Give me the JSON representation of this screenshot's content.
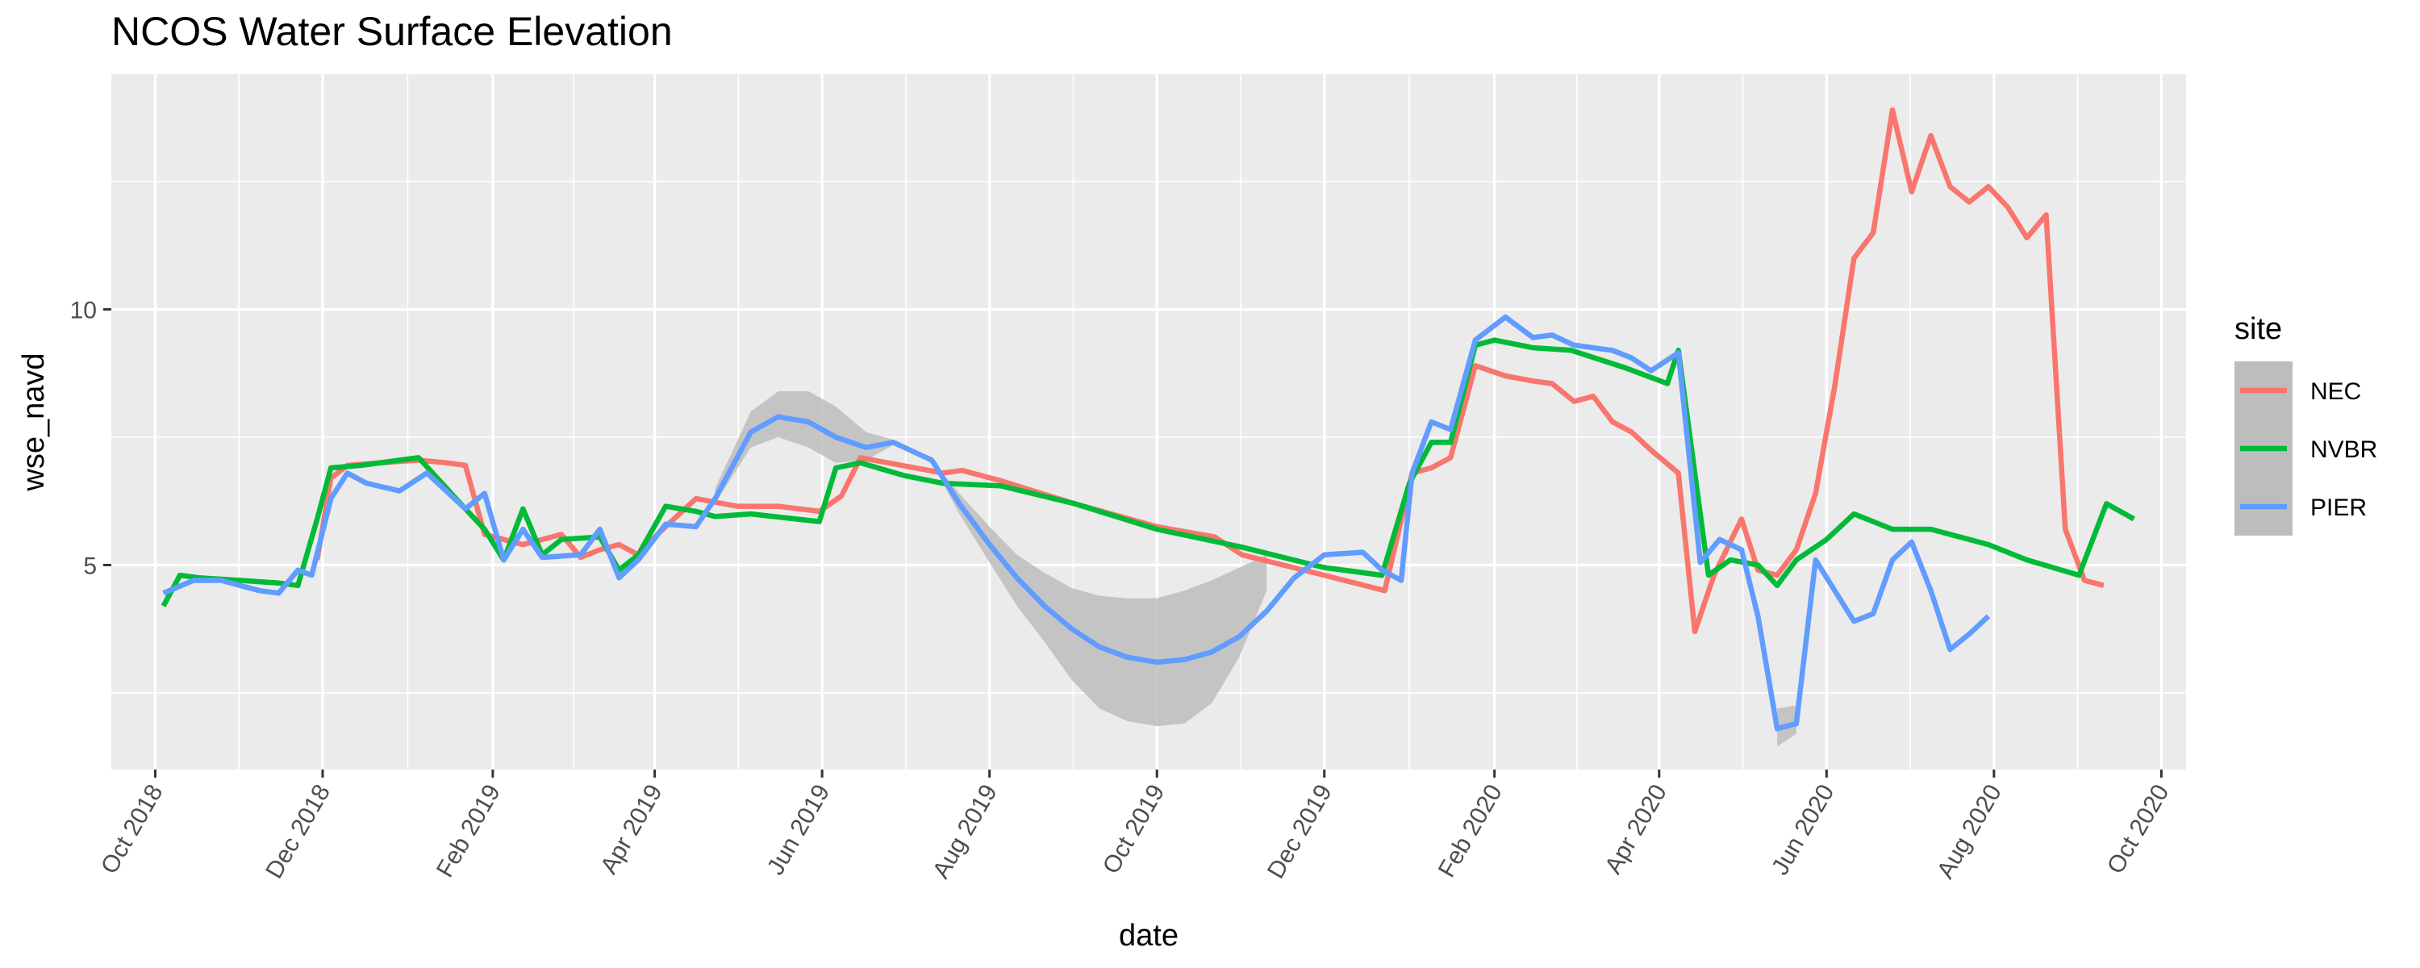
{
  "chart_data": {
    "type": "line",
    "title": "NCOS Water Surface Elevation",
    "xlabel": "date",
    "ylabel": "wse_navd",
    "x_ticks": [
      "Oct 2018",
      "Dec 2018",
      "Feb 2019",
      "Apr 2019",
      "Jun 2019",
      "Aug 2019",
      "Oct 2019",
      "Dec 2019",
      "Feb 2020",
      "Apr 2020",
      "Jun 2020",
      "Aug 2020",
      "Oct 2020"
    ],
    "y_ticks": [
      5,
      10
    ],
    "xlim": [
      "2018-09-15",
      "2020-10-10"
    ],
    "ylim": [
      1.0,
      14.6
    ],
    "grid": true,
    "legend": {
      "title": "site",
      "position": "right"
    },
    "colors": {
      "NEC": "#F8766D",
      "NVBR": "#00BA38",
      "PIER": "#619CFF",
      "band": "#bdbdbd",
      "panel": "#ebebeb"
    },
    "series": [
      {
        "name": "NEC",
        "points": [
          [
            "2018-11-29",
            5.1
          ],
          [
            "2018-12-04",
            6.7
          ],
          [
            "2018-12-10",
            6.95
          ],
          [
            "2018-12-22",
            7.0
          ],
          [
            "2019-01-05",
            7.05
          ],
          [
            "2019-01-15",
            7.0
          ],
          [
            "2019-01-22",
            6.95
          ],
          [
            "2019-01-29",
            5.6
          ],
          [
            "2019-02-05",
            5.5
          ],
          [
            "2019-02-12",
            5.4
          ],
          [
            "2019-02-19",
            5.5
          ],
          [
            "2019-02-26",
            5.6
          ],
          [
            "2019-03-05",
            5.15
          ],
          [
            "2019-03-12",
            5.3
          ],
          [
            "2019-03-19",
            5.4
          ],
          [
            "2019-03-26",
            5.2
          ],
          [
            "2019-04-02",
            5.6
          ],
          [
            "2019-04-16",
            6.3
          ],
          [
            "2019-05-01",
            6.15
          ],
          [
            "2019-05-16",
            6.15
          ],
          [
            "2019-05-31",
            6.05
          ],
          [
            "2019-06-08",
            6.35
          ],
          [
            "2019-06-15",
            7.1
          ],
          [
            "2019-06-30",
            6.95
          ],
          [
            "2019-07-15",
            6.8
          ],
          [
            "2019-07-22",
            6.85
          ],
          [
            "2019-08-05",
            6.65
          ],
          [
            "2019-09-01",
            6.2
          ],
          [
            "2019-10-01",
            5.75
          ],
          [
            "2019-10-22",
            5.55
          ],
          [
            "2019-11-01",
            5.2
          ],
          [
            "2019-12-01",
            4.8
          ],
          [
            "2019-12-23",
            4.5
          ],
          [
            "2020-01-02",
            6.8
          ],
          [
            "2020-01-09",
            6.9
          ],
          [
            "2020-01-16",
            7.1
          ],
          [
            "2020-01-25",
            8.9
          ],
          [
            "2020-02-05",
            8.7
          ],
          [
            "2020-02-15",
            8.6
          ],
          [
            "2020-02-22",
            8.55
          ],
          [
            "2020-03-01",
            8.2
          ],
          [
            "2020-03-08",
            8.3
          ],
          [
            "2020-03-15",
            7.8
          ],
          [
            "2020-03-22",
            7.6
          ],
          [
            "2020-03-29",
            7.25
          ],
          [
            "2020-04-08",
            6.8
          ],
          [
            "2020-04-14",
            3.7
          ],
          [
            "2020-04-21",
            4.8
          ],
          [
            "2020-05-01",
            5.9
          ],
          [
            "2020-05-07",
            4.9
          ],
          [
            "2020-05-14",
            4.8
          ],
          [
            "2020-05-21",
            5.3
          ],
          [
            "2020-05-28",
            6.4
          ],
          [
            "2020-06-04",
            8.5
          ],
          [
            "2020-06-11",
            11.0
          ],
          [
            "2020-06-18",
            11.5
          ],
          [
            "2020-06-25",
            13.9
          ],
          [
            "2020-07-02",
            12.3
          ],
          [
            "2020-07-09",
            13.4
          ],
          [
            "2020-07-16",
            12.4
          ],
          [
            "2020-07-23",
            12.1
          ],
          [
            "2020-07-30",
            12.4
          ],
          [
            "2020-08-06",
            12.0
          ],
          [
            "2020-08-13",
            11.4
          ],
          [
            "2020-08-20",
            11.85
          ],
          [
            "2020-08-27",
            5.7
          ],
          [
            "2020-09-03",
            4.7
          ],
          [
            "2020-09-10",
            4.6
          ]
        ]
      },
      {
        "name": "NVBR",
        "points": [
          [
            "2018-10-04",
            4.2
          ],
          [
            "2018-10-10",
            4.8
          ],
          [
            "2018-10-17",
            4.75
          ],
          [
            "2018-11-01",
            4.7
          ],
          [
            "2018-11-15",
            4.65
          ],
          [
            "2018-11-22",
            4.6
          ],
          [
            "2018-11-29",
            5.9
          ],
          [
            "2018-12-04",
            6.9
          ],
          [
            "2018-12-15",
            6.95
          ],
          [
            "2018-12-29",
            7.05
          ],
          [
            "2019-01-05",
            7.1
          ],
          [
            "2019-01-22",
            6.1
          ],
          [
            "2019-01-29",
            5.7
          ],
          [
            "2019-02-05",
            5.1
          ],
          [
            "2019-02-12",
            6.1
          ],
          [
            "2019-02-19",
            5.2
          ],
          [
            "2019-02-26",
            5.5
          ],
          [
            "2019-03-12",
            5.55
          ],
          [
            "2019-03-19",
            4.9
          ],
          [
            "2019-03-26",
            5.2
          ],
          [
            "2019-04-05",
            6.15
          ],
          [
            "2019-04-16",
            6.05
          ],
          [
            "2019-04-23",
            5.95
          ],
          [
            "2019-05-06",
            6.0
          ],
          [
            "2019-05-31",
            5.85
          ],
          [
            "2019-06-06",
            6.9
          ],
          [
            "2019-06-15",
            7.0
          ],
          [
            "2019-07-01",
            6.75
          ],
          [
            "2019-07-15",
            6.6
          ],
          [
            "2019-08-05",
            6.55
          ],
          [
            "2019-09-01",
            6.2
          ],
          [
            "2019-10-01",
            5.7
          ],
          [
            "2019-11-01",
            5.35
          ],
          [
            "2019-12-01",
            4.95
          ],
          [
            "2019-12-22",
            4.8
          ],
          [
            "2020-01-01",
            6.6
          ],
          [
            "2020-01-09",
            7.4
          ],
          [
            "2020-01-16",
            7.4
          ],
          [
            "2020-01-25",
            9.3
          ],
          [
            "2020-02-01",
            9.4
          ],
          [
            "2020-02-15",
            9.25
          ],
          [
            "2020-02-29",
            9.2
          ],
          [
            "2020-03-20",
            8.85
          ],
          [
            "2020-04-04",
            8.55
          ],
          [
            "2020-04-08",
            9.2
          ],
          [
            "2020-04-19",
            4.8
          ],
          [
            "2020-04-27",
            5.1
          ],
          [
            "2020-05-07",
            5.0
          ],
          [
            "2020-05-14",
            4.6
          ],
          [
            "2020-05-21",
            5.1
          ],
          [
            "2020-06-01",
            5.5
          ],
          [
            "2020-06-11",
            6.0
          ],
          [
            "2020-06-25",
            5.7
          ],
          [
            "2020-07-09",
            5.7
          ],
          [
            "2020-07-30",
            5.4
          ],
          [
            "2020-08-13",
            5.1
          ],
          [
            "2020-09-01",
            4.8
          ],
          [
            "2020-09-11",
            6.2
          ],
          [
            "2020-09-21",
            5.9
          ]
        ]
      },
      {
        "name": "PIER",
        "points": [
          [
            "2018-10-04",
            4.45
          ],
          [
            "2018-10-15",
            4.7
          ],
          [
            "2018-10-25",
            4.7
          ],
          [
            "2018-11-08",
            4.5
          ],
          [
            "2018-11-15",
            4.45
          ],
          [
            "2018-11-22",
            4.9
          ],
          [
            "2018-11-27",
            4.8
          ],
          [
            "2018-12-04",
            6.3
          ],
          [
            "2018-12-10",
            6.8
          ],
          [
            "2018-12-17",
            6.6
          ],
          [
            "2018-12-29",
            6.45
          ],
          [
            "2019-01-08",
            6.8
          ],
          [
            "2019-01-22",
            6.1
          ],
          [
            "2019-01-29",
            6.4
          ],
          [
            "2019-02-05",
            5.1
          ],
          [
            "2019-02-12",
            5.7
          ],
          [
            "2019-02-19",
            5.15
          ],
          [
            "2019-03-05",
            5.2
          ],
          [
            "2019-03-12",
            5.7
          ],
          [
            "2019-03-19",
            4.75
          ],
          [
            "2019-03-26",
            5.1
          ],
          [
            "2019-04-05",
            5.8
          ],
          [
            "2019-04-16",
            5.75
          ],
          [
            "2019-04-23",
            6.3
          ],
          [
            "2019-05-06",
            7.6
          ],
          [
            "2019-05-16",
            7.9
          ],
          [
            "2019-05-27",
            7.8
          ],
          [
            "2019-06-06",
            7.5
          ],
          [
            "2019-06-17",
            7.3
          ],
          [
            "2019-06-27",
            7.4
          ],
          [
            "2019-07-11",
            7.05
          ],
          [
            "2019-07-21",
            6.2
          ],
          [
            "2019-08-01",
            5.4
          ],
          [
            "2019-08-11",
            4.75
          ],
          [
            "2019-08-21",
            4.2
          ],
          [
            "2019-08-31",
            3.75
          ],
          [
            "2019-09-10",
            3.4
          ],
          [
            "2019-09-20",
            3.2
          ],
          [
            "2019-10-01",
            3.1
          ],
          [
            "2019-10-11",
            3.15
          ],
          [
            "2019-10-21",
            3.3
          ],
          [
            "2019-10-31",
            3.6
          ],
          [
            "2019-11-10",
            4.1
          ],
          [
            "2019-11-20",
            4.75
          ],
          [
            "2019-12-01",
            5.2
          ],
          [
            "2019-12-15",
            5.25
          ],
          [
            "2019-12-22",
            4.9
          ],
          [
            "2019-12-29",
            4.7
          ],
          [
            "2020-01-02",
            6.8
          ],
          [
            "2020-01-09",
            7.8
          ],
          [
            "2020-01-16",
            7.65
          ],
          [
            "2020-01-25",
            9.4
          ],
          [
            "2020-02-05",
            9.85
          ],
          [
            "2020-02-15",
            9.45
          ],
          [
            "2020-02-22",
            9.5
          ],
          [
            "2020-03-01",
            9.3
          ],
          [
            "2020-03-15",
            9.2
          ],
          [
            "2020-03-22",
            9.05
          ],
          [
            "2020-03-29",
            8.8
          ],
          [
            "2020-04-08",
            9.15
          ],
          [
            "2020-04-16",
            5.05
          ],
          [
            "2020-04-23",
            5.5
          ],
          [
            "2020-05-01",
            5.3
          ],
          [
            "2020-05-07",
            4.0
          ],
          [
            "2020-05-14",
            1.8
          ],
          [
            "2020-05-21",
            1.9
          ],
          [
            "2020-05-28",
            5.1
          ],
          [
            "2020-06-04",
            4.5
          ],
          [
            "2020-06-11",
            3.9
          ],
          [
            "2020-06-18",
            4.05
          ],
          [
            "2020-06-25",
            5.1
          ],
          [
            "2020-07-02",
            5.45
          ],
          [
            "2020-07-09",
            4.5
          ],
          [
            "2020-07-16",
            3.35
          ],
          [
            "2020-07-23",
            3.65
          ],
          [
            "2020-07-30",
            4.0
          ]
        ]
      }
    ],
    "bands": [
      {
        "series": "PIER",
        "upper": [
          [
            "2019-04-23",
            6.5
          ],
          [
            "2019-05-06",
            8.0
          ],
          [
            "2019-05-16",
            8.4
          ],
          [
            "2019-05-27",
            8.4
          ],
          [
            "2019-06-06",
            8.1
          ],
          [
            "2019-06-17",
            7.6
          ],
          [
            "2019-06-27",
            7.45
          ],
          [
            "2019-07-11",
            7.05
          ],
          [
            "2019-07-21",
            6.4
          ],
          [
            "2019-08-01",
            5.75
          ],
          [
            "2019-08-11",
            5.2
          ],
          [
            "2019-08-21",
            4.85
          ],
          [
            "2019-08-31",
            4.55
          ],
          [
            "2019-09-10",
            4.4
          ],
          [
            "2019-09-20",
            4.35
          ],
          [
            "2019-10-01",
            4.35
          ],
          [
            "2019-10-11",
            4.5
          ],
          [
            "2019-10-21",
            4.7
          ],
          [
            "2019-10-31",
            4.95
          ],
          [
            "2019-11-10",
            5.2
          ]
        ],
        "lower": [
          [
            "2019-04-23",
            6.2
          ],
          [
            "2019-05-06",
            7.3
          ],
          [
            "2019-05-16",
            7.5
          ],
          [
            "2019-05-27",
            7.3
          ],
          [
            "2019-06-06",
            7.0
          ],
          [
            "2019-06-17",
            7.05
          ],
          [
            "2019-06-27",
            7.35
          ],
          [
            "2019-07-11",
            7.0
          ],
          [
            "2019-07-21",
            6.0
          ],
          [
            "2019-08-01",
            5.05
          ],
          [
            "2019-08-11",
            4.2
          ],
          [
            "2019-08-21",
            3.5
          ],
          [
            "2019-08-31",
            2.75
          ],
          [
            "2019-09-10",
            2.2
          ],
          [
            "2019-09-20",
            1.95
          ],
          [
            "2019-10-01",
            1.85
          ],
          [
            "2019-10-11",
            1.9
          ],
          [
            "2019-10-21",
            2.3
          ],
          [
            "2019-10-31",
            3.2
          ],
          [
            "2019-11-10",
            4.5
          ]
        ]
      },
      {
        "series": "PIER",
        "upper": [
          [
            "2020-05-14",
            2.2
          ],
          [
            "2020-05-21",
            2.25
          ]
        ],
        "lower": [
          [
            "2020-05-14",
            1.45
          ],
          [
            "2020-05-21",
            1.7
          ]
        ]
      }
    ]
  }
}
